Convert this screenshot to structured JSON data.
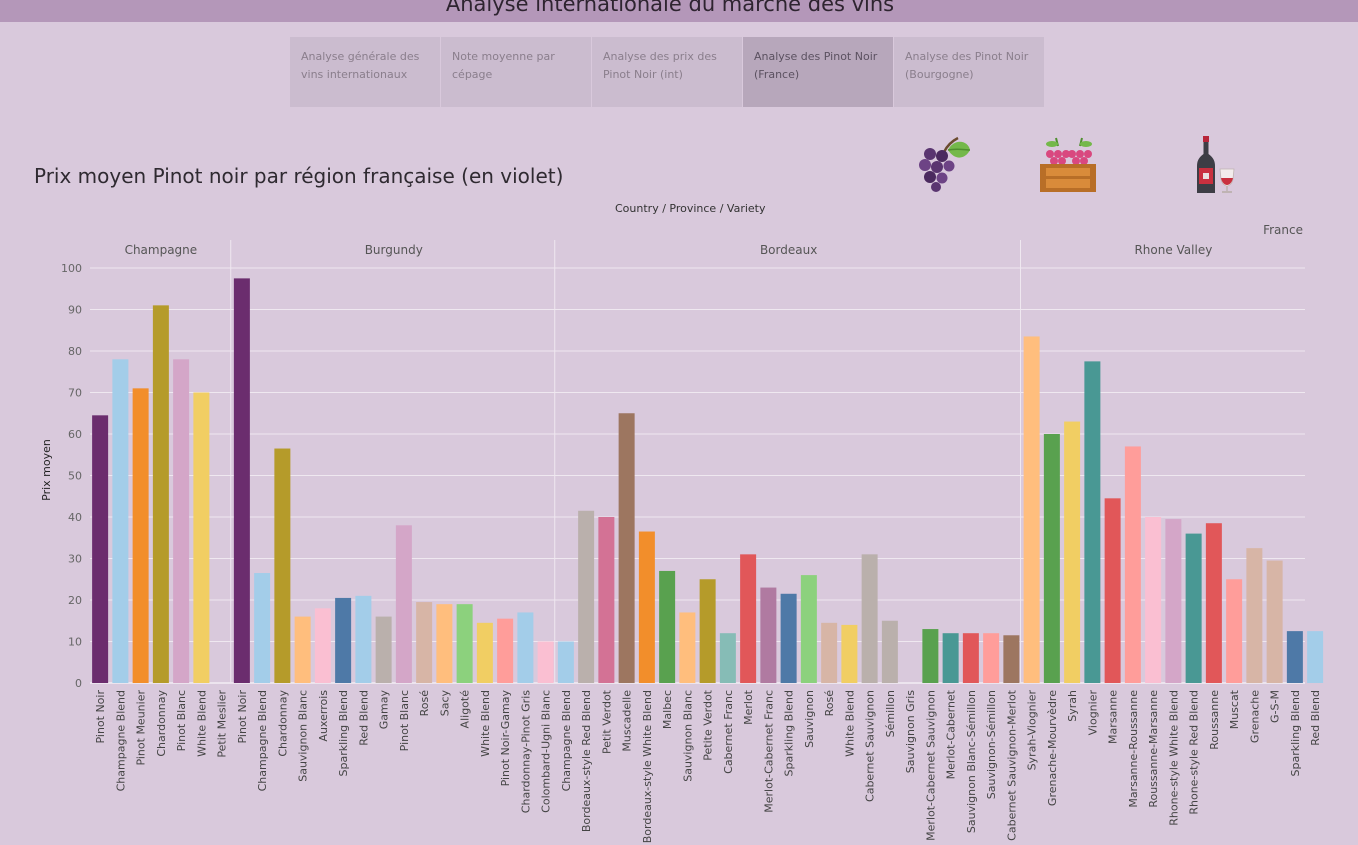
{
  "app": {
    "title": "Analyse internationale du marché des vins"
  },
  "tabs": [
    {
      "label": "Analyse générale des vins internationaux",
      "active": false
    },
    {
      "label": "Note moyenne par cépage",
      "active": false
    },
    {
      "label": "Analyse des prix des Pinot Noir (int)",
      "active": false
    },
    {
      "label": "Analyse des Pinot Noir (France)",
      "active": true
    },
    {
      "label": "Analyse des Pinot Noir (Bourgogne)",
      "active": false
    }
  ],
  "icons": [
    "grapes-icon",
    "grape-crate-icon",
    "wine-bottle-glass-icon"
  ],
  "chart_data": {
    "type": "bar",
    "title": "Prix moyen Pinot noir par région française (en violet)",
    "header_path": "Country / Province / Variety",
    "country": "France",
    "ylabel": "Prix moyen",
    "ylim": [
      0,
      100
    ],
    "yticks": [
      "0",
      "10",
      "20",
      "30",
      "40",
      "50",
      "60",
      "70",
      "80",
      "90",
      "100"
    ],
    "grid": true,
    "panels": [
      {
        "name": "Champagne",
        "bars": [
          {
            "label": "Pinot Noir",
            "value": 64.5,
            "color": "#6b2d6e"
          },
          {
            "label": "Champagne Blend",
            "value": 78,
            "color": "#a3cde9"
          },
          {
            "label": "Pinot Meunier",
            "value": 71,
            "color": "#f28e2b"
          },
          {
            "label": "Chardonnay",
            "value": 91,
            "color": "#b59b2a"
          },
          {
            "label": "Pinot Blanc",
            "value": 78,
            "color": "#d4a6c8"
          },
          {
            "label": "White Blend",
            "value": 70,
            "color": "#f1ce63"
          },
          {
            "label": "Petit Meslier",
            "value": null,
            "color": "#cccccc"
          }
        ]
      },
      {
        "name": "Burgundy",
        "bars": [
          {
            "label": "Pinot Noir",
            "value": 97.5,
            "color": "#6b2d6e"
          },
          {
            "label": "Champagne Blend",
            "value": 26.5,
            "color": "#a3cde9"
          },
          {
            "label": "Chardonnay",
            "value": 56.5,
            "color": "#b59b2a"
          },
          {
            "label": "Sauvignon Blanc",
            "value": 16,
            "color": "#ffbe7d"
          },
          {
            "label": "Auxerrois",
            "value": 18,
            "color": "#fabfd2"
          },
          {
            "label": "Sparkling Blend",
            "value": 20.5,
            "color": "#4e79a7"
          },
          {
            "label": "Red Blend",
            "value": 21,
            "color": "#a3cde9"
          },
          {
            "label": "Gamay",
            "value": 16,
            "color": "#bab0ac"
          },
          {
            "label": "Pinot Blanc",
            "value": 38,
            "color": "#d4a6c8"
          },
          {
            "label": "Rosé",
            "value": 19.5,
            "color": "#d7b5a6"
          },
          {
            "label": "Sacy",
            "value": 19,
            "color": "#ffbe7d"
          },
          {
            "label": "Aligoté",
            "value": 19,
            "color": "#8cd17d"
          },
          {
            "label": "White Blend",
            "value": 14.5,
            "color": "#f1ce63"
          },
          {
            "label": "Pinot Noir-Gamay",
            "value": 15.5,
            "color": "#ff9d9a"
          },
          {
            "label": "Chardonnay-Pinot Gris",
            "value": 17,
            "color": "#a3cde9"
          },
          {
            "label": "Colombard-Ugni Blanc",
            "value": 10,
            "color": "#fabfd2"
          }
        ]
      },
      {
        "name": "Bordeaux",
        "bars": [
          {
            "label": "Champagne Blend",
            "value": 10,
            "color": "#a3cde9"
          },
          {
            "label": "Bordeaux-style Red Blend",
            "value": 41.5,
            "color": "#bab0ac"
          },
          {
            "label": "Petit Verdot",
            "value": 40,
            "color": "#d37295"
          },
          {
            "label": "Muscadelle",
            "value": 65,
            "color": "#9d7660"
          },
          {
            "label": "Bordeaux-style White Blend",
            "value": 36.5,
            "color": "#f28e2b"
          },
          {
            "label": "Malbec",
            "value": 27,
            "color": "#59a14f"
          },
          {
            "label": "Sauvignon Blanc",
            "value": 17,
            "color": "#ffbe7d"
          },
          {
            "label": "Petite Verdot",
            "value": 25,
            "color": "#b59b2a"
          },
          {
            "label": "Cabernet Franc",
            "value": 12,
            "color": "#86bcb6"
          },
          {
            "label": "Merlot",
            "value": 31,
            "color": "#e15759"
          },
          {
            "label": "Merlot-Cabernet Franc",
            "value": 23,
            "color": "#b07aa1"
          },
          {
            "label": "Sparkling Blend",
            "value": 21.5,
            "color": "#4e79a7"
          },
          {
            "label": "Sauvignon",
            "value": 26,
            "color": "#8cd17d"
          },
          {
            "label": "Rosé",
            "value": 14.5,
            "color": "#d7b5a6"
          },
          {
            "label": "White Blend",
            "value": 14,
            "color": "#f1ce63"
          },
          {
            "label": "Cabernet Sauvignon",
            "value": 31,
            "color": "#bab0ac"
          },
          {
            "label": "Sémillon",
            "value": 15,
            "color": "#bab0ac"
          },
          {
            "label": "Sauvignon Gris",
            "value": null,
            "color": "#cccccc"
          },
          {
            "label": "Merlot-Cabernet Sauvignon",
            "value": 13,
            "color": "#59a14f"
          },
          {
            "label": "Merlot-Cabernet",
            "value": 12,
            "color": "#499894"
          },
          {
            "label": "Sauvignon Blanc-Sémillon",
            "value": 12,
            "color": "#e15759"
          },
          {
            "label": "Sauvignon-Sémillon",
            "value": 12,
            "color": "#ff9d9a"
          },
          {
            "label": "Cabernet Sauvignon-Merlot",
            "value": 11.5,
            "color": "#9d7660"
          }
        ]
      },
      {
        "name": "Rhone Valley",
        "bars": [
          {
            "label": "Syrah-Viognier",
            "value": 83.5,
            "color": "#ffbe7d"
          },
          {
            "label": "Grenache-Mourvèdre",
            "value": 60,
            "color": "#59a14f"
          },
          {
            "label": "Syrah",
            "value": 63,
            "color": "#f1ce63"
          },
          {
            "label": "Viognier",
            "value": 77.5,
            "color": "#499894"
          },
          {
            "label": "Marsanne",
            "value": 44.5,
            "color": "#e15759"
          },
          {
            "label": "Marsanne-Roussanne",
            "value": 57,
            "color": "#ff9d9a"
          },
          {
            "label": "Roussanne-Marsanne",
            "value": 40,
            "color": "#fabfd2"
          },
          {
            "label": "Rhone-style White Blend",
            "value": 39.5,
            "color": "#d4a6c8"
          },
          {
            "label": "Rhone-style Red Blend",
            "value": 36,
            "color": "#499894"
          },
          {
            "label": "Roussanne",
            "value": 38.5,
            "color": "#e15759"
          },
          {
            "label": "Muscat",
            "value": 25,
            "color": "#ff9d9a"
          },
          {
            "label": "Grenache",
            "value": 32.5,
            "color": "#d7b5a6"
          },
          {
            "label": "G-S-M",
            "value": 29.5,
            "color": "#d7b5a6"
          },
          {
            "label": "Sparkling Blend",
            "value": 12.5,
            "color": "#4e79a7"
          },
          {
            "label": "Red Blend",
            "value": 12.5,
            "color": "#a3cde9"
          }
        ]
      }
    ]
  }
}
